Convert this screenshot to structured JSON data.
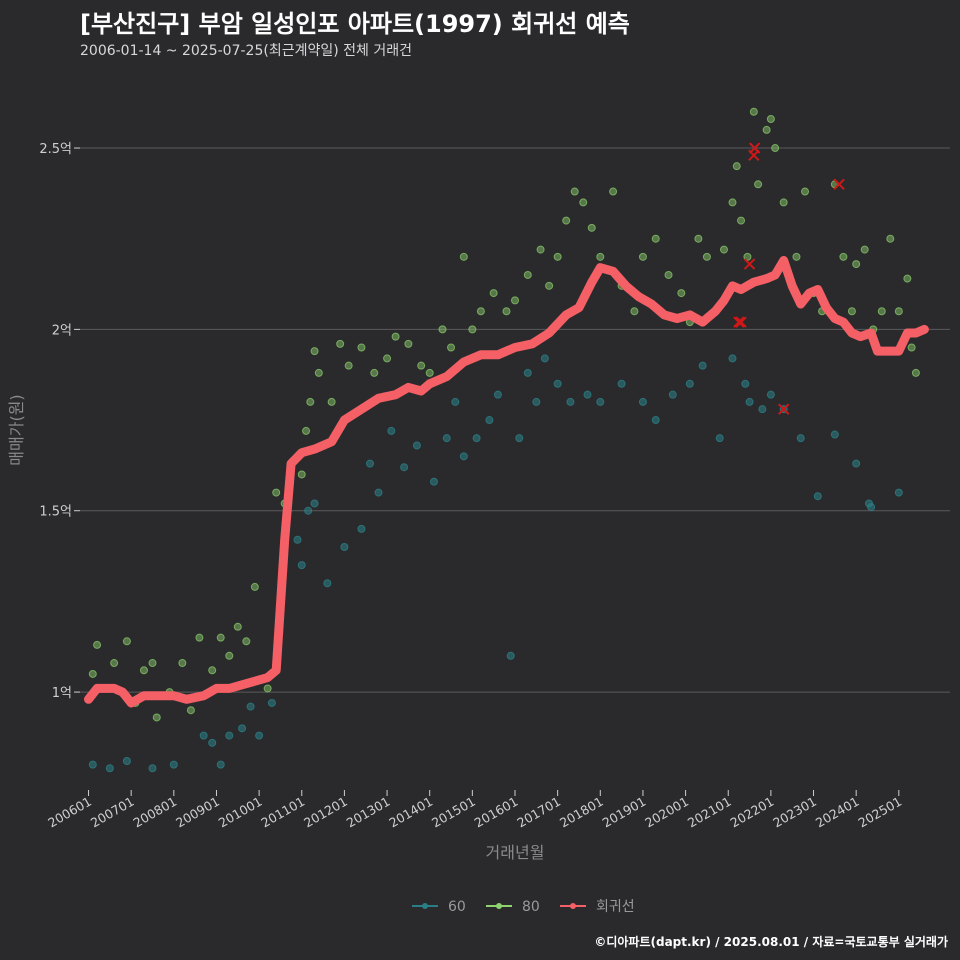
{
  "title": "[부산진구] 부암 일성인포 아파트(1997) 회귀선 예측",
  "subtitle": "2006-01-14 ~ 2025-07-25(최근계약일) 전체 거래건",
  "credit": "©디아파트(dapt.kr) / 2025.08.01 / 자료=국토교통부 실거래가",
  "colors": {
    "background": "#2a2a2d",
    "grid": "#5a5a5e",
    "s60": "#2a7f86",
    "s80": "#8fd36e",
    "regression": "#f46065",
    "cancel": "#d01818"
  },
  "chart_data": {
    "type": "scatter",
    "title": "[부산진구] 부암 일성인포 아파트(1997) 회귀선 예측",
    "xlabel": "거래년월",
    "ylabel": "매매가(원)",
    "xlim": [
      2005.8,
      2026.2
    ],
    "ylim": [
      0.73,
      2.66
    ],
    "x_ticks": [
      {
        "v": 2006.0,
        "label": "200601"
      },
      {
        "v": 2007.0,
        "label": "200701"
      },
      {
        "v": 2008.0,
        "label": "200801"
      },
      {
        "v": 2009.0,
        "label": "200901"
      },
      {
        "v": 2010.0,
        "label": "201001"
      },
      {
        "v": 2011.0,
        "label": "201101"
      },
      {
        "v": 2012.0,
        "label": "201201"
      },
      {
        "v": 2013.0,
        "label": "201301"
      },
      {
        "v": 2014.0,
        "label": "201401"
      },
      {
        "v": 2015.0,
        "label": "201501"
      },
      {
        "v": 2016.0,
        "label": "201601"
      },
      {
        "v": 2017.0,
        "label": "201701"
      },
      {
        "v": 2018.0,
        "label": "201801"
      },
      {
        "v": 2019.0,
        "label": "201901"
      },
      {
        "v": 2020.0,
        "label": "202001"
      },
      {
        "v": 2021.0,
        "label": "202101"
      },
      {
        "v": 2022.0,
        "label": "202201"
      },
      {
        "v": 2023.0,
        "label": "202301"
      },
      {
        "v": 2024.0,
        "label": "202401"
      },
      {
        "v": 2025.0,
        "label": "202501"
      }
    ],
    "y_ticks": [
      {
        "v": 1.0,
        "label": "1억"
      },
      {
        "v": 1.5,
        "label": "1.5억"
      },
      {
        "v": 2.0,
        "label": "2억"
      },
      {
        "v": 2.5,
        "label": "2.5억"
      }
    ],
    "legend": {
      "position": "bottom",
      "items": [
        {
          "name": "60",
          "color": "#2a7f86"
        },
        {
          "name": "80",
          "color": "#8fd36e"
        },
        {
          "name": "회귀선",
          "color": "#f46065"
        }
      ]
    },
    "series": [
      {
        "name": "60",
        "type": "scatter",
        "points": [
          [
            2006.1,
            0.8
          ],
          [
            2006.5,
            0.79
          ],
          [
            2006.9,
            0.81
          ],
          [
            2007.5,
            0.79
          ],
          [
            2008.0,
            0.8
          ],
          [
            2008.7,
            0.88
          ],
          [
            2008.9,
            0.86
          ],
          [
            2009.1,
            0.8
          ],
          [
            2009.3,
            0.88
          ],
          [
            2009.6,
            0.9
          ],
          [
            2009.8,
            0.96
          ],
          [
            2010.0,
            0.88
          ],
          [
            2010.3,
            0.97
          ],
          [
            2010.9,
            1.42
          ],
          [
            2011.0,
            1.35
          ],
          [
            2011.15,
            1.5
          ],
          [
            2011.3,
            1.52
          ],
          [
            2011.6,
            1.3
          ],
          [
            2012.0,
            1.4
          ],
          [
            2012.4,
            1.45
          ],
          [
            2012.6,
            1.63
          ],
          [
            2012.8,
            1.55
          ],
          [
            2013.1,
            1.72
          ],
          [
            2013.4,
            1.62
          ],
          [
            2013.7,
            1.68
          ],
          [
            2014.1,
            1.58
          ],
          [
            2014.4,
            1.7
          ],
          [
            2014.6,
            1.8
          ],
          [
            2014.8,
            1.65
          ],
          [
            2015.1,
            1.7
          ],
          [
            2015.4,
            1.75
          ],
          [
            2015.6,
            1.82
          ],
          [
            2015.9,
            1.1
          ],
          [
            2016.1,
            1.7
          ],
          [
            2016.3,
            1.88
          ],
          [
            2016.5,
            1.8
          ],
          [
            2016.7,
            1.92
          ],
          [
            2017.0,
            1.85
          ],
          [
            2017.3,
            1.8
          ],
          [
            2017.7,
            1.82
          ],
          [
            2018.0,
            1.8
          ],
          [
            2018.5,
            1.85
          ],
          [
            2019.0,
            1.8
          ],
          [
            2019.3,
            1.75
          ],
          [
            2019.7,
            1.82
          ],
          [
            2020.1,
            1.85
          ],
          [
            2020.4,
            1.9
          ],
          [
            2020.8,
            1.7
          ],
          [
            2021.1,
            1.92
          ],
          [
            2021.4,
            1.85
          ],
          [
            2021.5,
            1.8
          ],
          [
            2021.8,
            1.78
          ],
          [
            2022.0,
            1.82
          ],
          [
            2022.3,
            1.78
          ],
          [
            2022.7,
            1.7
          ],
          [
            2023.1,
            1.54
          ],
          [
            2023.5,
            1.71
          ],
          [
            2024.0,
            1.63
          ],
          [
            2024.3,
            1.52
          ],
          [
            2024.35,
            1.51
          ],
          [
            2025.0,
            1.55
          ]
        ]
      },
      {
        "name": "80",
        "type": "scatter",
        "points": [
          [
            2006.1,
            1.05
          ],
          [
            2006.2,
            1.13
          ],
          [
            2006.6,
            1.08
          ],
          [
            2006.9,
            1.14
          ],
          [
            2007.1,
            0.97
          ],
          [
            2007.3,
            1.06
          ],
          [
            2007.5,
            1.08
          ],
          [
            2007.6,
            0.93
          ],
          [
            2007.9,
            1.0
          ],
          [
            2008.2,
            1.08
          ],
          [
            2008.4,
            0.95
          ],
          [
            2008.6,
            1.15
          ],
          [
            2008.9,
            1.06
          ],
          [
            2009.1,
            1.15
          ],
          [
            2009.3,
            1.1
          ],
          [
            2009.5,
            1.18
          ],
          [
            2009.7,
            1.14
          ],
          [
            2009.9,
            1.29
          ],
          [
            2010.2,
            1.01
          ],
          [
            2010.4,
            1.55
          ],
          [
            2010.6,
            1.52
          ],
          [
            2011.0,
            1.6
          ],
          [
            2011.1,
            1.72
          ],
          [
            2011.2,
            1.8
          ],
          [
            2011.3,
            1.94
          ],
          [
            2011.4,
            1.88
          ],
          [
            2011.7,
            1.8
          ],
          [
            2011.9,
            1.96
          ],
          [
            2012.1,
            1.9
          ],
          [
            2012.4,
            1.95
          ],
          [
            2012.7,
            1.88
          ],
          [
            2013.0,
            1.92
          ],
          [
            2013.2,
            1.98
          ],
          [
            2013.5,
            1.96
          ],
          [
            2013.8,
            1.9
          ],
          [
            2014.0,
            1.88
          ],
          [
            2014.3,
            2.0
          ],
          [
            2014.5,
            1.95
          ],
          [
            2014.8,
            2.2
          ],
          [
            2015.0,
            2.0
          ],
          [
            2015.2,
            2.05
          ],
          [
            2015.5,
            2.1
          ],
          [
            2015.8,
            2.05
          ],
          [
            2016.0,
            2.08
          ],
          [
            2016.3,
            2.15
          ],
          [
            2016.6,
            2.22
          ],
          [
            2016.8,
            2.12
          ],
          [
            2017.0,
            2.2
          ],
          [
            2017.2,
            2.3
          ],
          [
            2017.4,
            2.38
          ],
          [
            2017.6,
            2.35
          ],
          [
            2017.8,
            2.28
          ],
          [
            2018.0,
            2.2
          ],
          [
            2018.3,
            2.38
          ],
          [
            2018.5,
            2.12
          ],
          [
            2018.8,
            2.05
          ],
          [
            2019.0,
            2.2
          ],
          [
            2019.3,
            2.25
          ],
          [
            2019.6,
            2.15
          ],
          [
            2019.9,
            2.1
          ],
          [
            2020.1,
            2.02
          ],
          [
            2020.3,
            2.25
          ],
          [
            2020.5,
            2.2
          ],
          [
            2020.7,
            2.05
          ],
          [
            2020.9,
            2.22
          ],
          [
            2021.1,
            2.35
          ],
          [
            2021.2,
            2.45
          ],
          [
            2021.3,
            2.3
          ],
          [
            2021.45,
            2.2
          ],
          [
            2021.6,
            2.6
          ],
          [
            2021.7,
            2.4
          ],
          [
            2021.9,
            2.55
          ],
          [
            2022.0,
            2.58
          ],
          [
            2022.1,
            2.5
          ],
          [
            2022.3,
            2.35
          ],
          [
            2022.6,
            2.2
          ],
          [
            2022.8,
            2.38
          ],
          [
            2023.0,
            2.1
          ],
          [
            2023.2,
            2.05
          ],
          [
            2023.5,
            2.4
          ],
          [
            2023.7,
            2.2
          ],
          [
            2023.9,
            2.05
          ],
          [
            2024.0,
            2.18
          ],
          [
            2024.2,
            2.22
          ],
          [
            2024.4,
            2.0
          ],
          [
            2024.6,
            2.05
          ],
          [
            2024.8,
            2.25
          ],
          [
            2025.0,
            2.05
          ],
          [
            2025.2,
            2.14
          ],
          [
            2025.3,
            1.95
          ],
          [
            2025.4,
            1.88
          ]
        ]
      },
      {
        "name": "회귀선",
        "type": "line",
        "points": [
          [
            2006.0,
            0.98
          ],
          [
            2006.2,
            1.01
          ],
          [
            2006.4,
            1.01
          ],
          [
            2006.6,
            1.01
          ],
          [
            2006.8,
            1.0
          ],
          [
            2007.0,
            0.97
          ],
          [
            2007.3,
            0.99
          ],
          [
            2007.6,
            0.99
          ],
          [
            2008.0,
            0.99
          ],
          [
            2008.3,
            0.98
          ],
          [
            2008.7,
            0.99
          ],
          [
            2009.0,
            1.01
          ],
          [
            2009.3,
            1.01
          ],
          [
            2009.6,
            1.02
          ],
          [
            2009.9,
            1.03
          ],
          [
            2010.2,
            1.04
          ],
          [
            2010.4,
            1.06
          ],
          [
            2010.6,
            1.42
          ],
          [
            2010.75,
            1.63
          ],
          [
            2011.0,
            1.66
          ],
          [
            2011.3,
            1.67
          ],
          [
            2011.7,
            1.69
          ],
          [
            2012.0,
            1.75
          ],
          [
            2012.4,
            1.78
          ],
          [
            2012.8,
            1.81
          ],
          [
            2013.2,
            1.82
          ],
          [
            2013.5,
            1.84
          ],
          [
            2013.8,
            1.83
          ],
          [
            2014.0,
            1.85
          ],
          [
            2014.4,
            1.87
          ],
          [
            2014.8,
            1.91
          ],
          [
            2015.2,
            1.93
          ],
          [
            2015.6,
            1.93
          ],
          [
            2016.0,
            1.95
          ],
          [
            2016.4,
            1.96
          ],
          [
            2016.8,
            1.99
          ],
          [
            2017.2,
            2.04
          ],
          [
            2017.5,
            2.06
          ],
          [
            2017.8,
            2.13
          ],
          [
            2018.0,
            2.17
          ],
          [
            2018.3,
            2.16
          ],
          [
            2018.6,
            2.12
          ],
          [
            2018.9,
            2.09
          ],
          [
            2019.2,
            2.07
          ],
          [
            2019.5,
            2.04
          ],
          [
            2019.8,
            2.03
          ],
          [
            2020.1,
            2.04
          ],
          [
            2020.4,
            2.02
          ],
          [
            2020.7,
            2.05
          ],
          [
            2020.9,
            2.08
          ],
          [
            2021.1,
            2.12
          ],
          [
            2021.3,
            2.11
          ],
          [
            2021.6,
            2.13
          ],
          [
            2021.9,
            2.14
          ],
          [
            2022.1,
            2.15
          ],
          [
            2022.3,
            2.19
          ],
          [
            2022.5,
            2.12
          ],
          [
            2022.7,
            2.07
          ],
          [
            2022.9,
            2.1
          ],
          [
            2023.1,
            2.11
          ],
          [
            2023.3,
            2.06
          ],
          [
            2023.5,
            2.03
          ],
          [
            2023.7,
            2.02
          ],
          [
            2023.9,
            1.99
          ],
          [
            2024.1,
            1.98
          ],
          [
            2024.35,
            1.99
          ],
          [
            2024.5,
            1.94
          ],
          [
            2024.8,
            1.94
          ],
          [
            2025.0,
            1.94
          ],
          [
            2025.2,
            1.99
          ],
          [
            2025.4,
            1.99
          ],
          [
            2025.6,
            2.0
          ]
        ]
      }
    ],
    "cancelled": [
      [
        2021.25,
        2.02
      ],
      [
        2021.3,
        2.02
      ],
      [
        2021.5,
        2.18
      ],
      [
        2021.6,
        2.48
      ],
      [
        2021.62,
        2.5
      ],
      [
        2022.3,
        1.78
      ],
      [
        2023.6,
        2.4
      ]
    ]
  }
}
